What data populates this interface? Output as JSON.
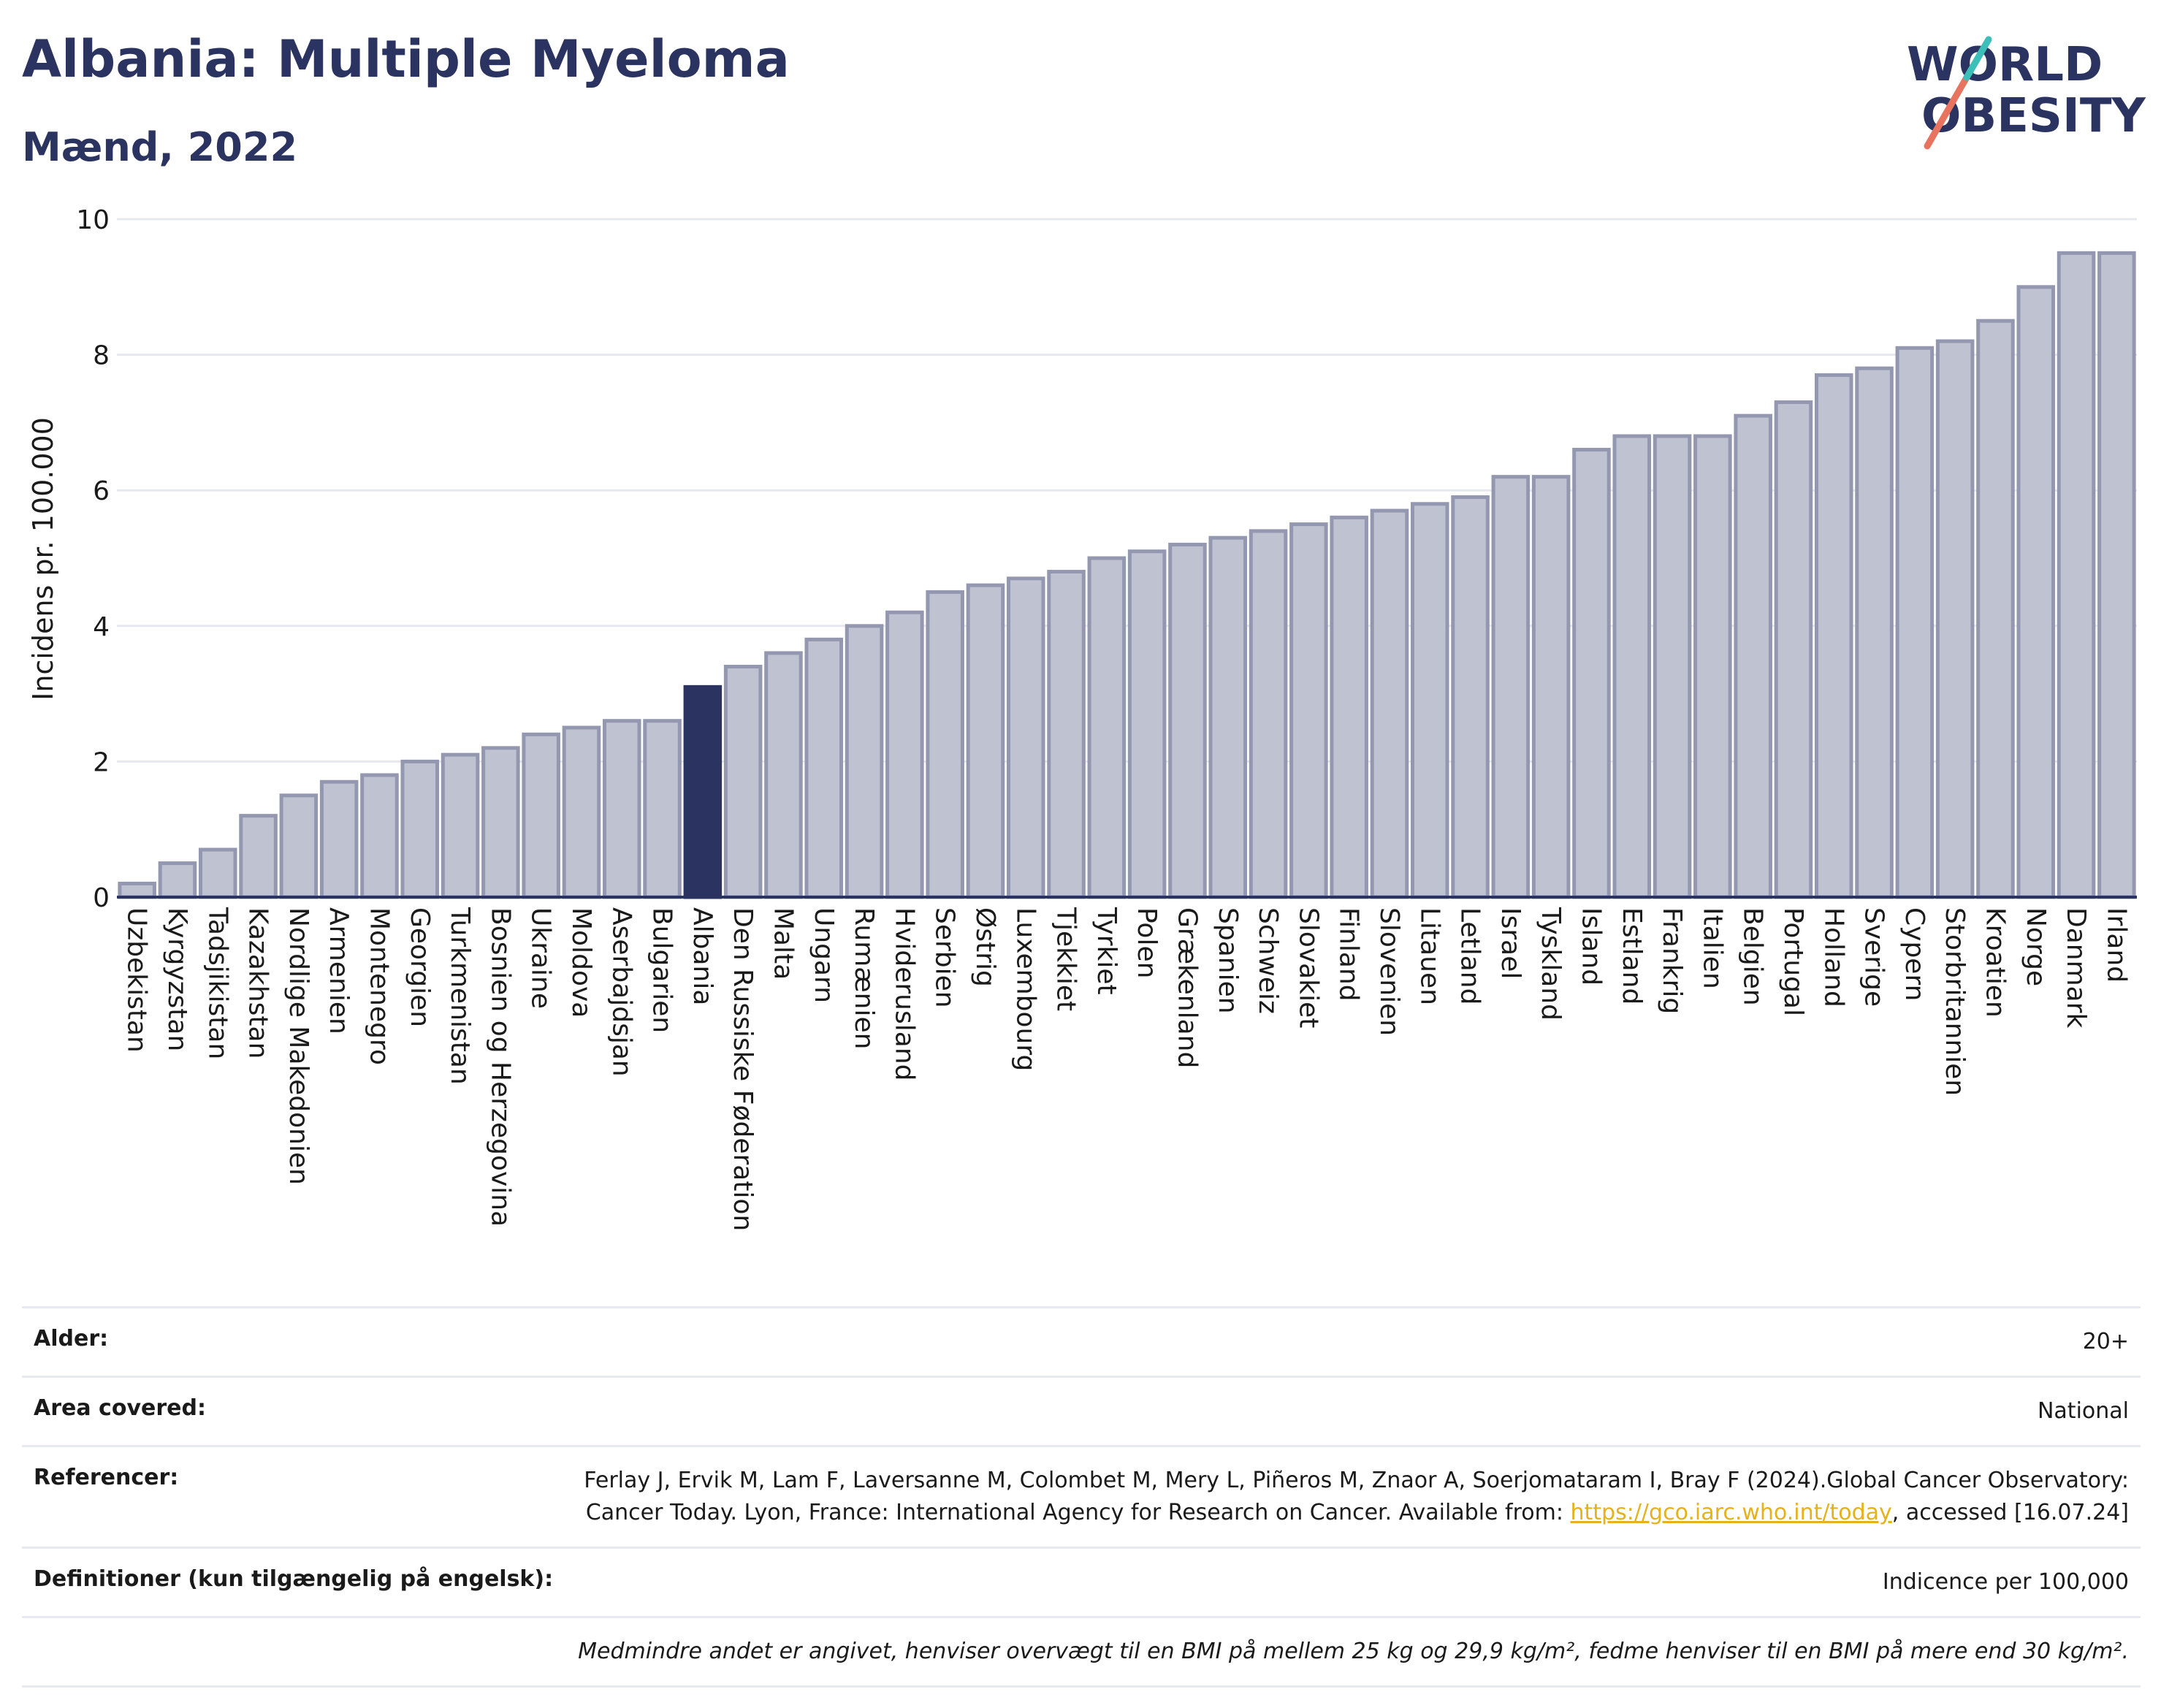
{
  "header": {
    "title": "Albania: Multiple Myeloma",
    "subtitle": "Mænd, 2022",
    "logo_line1": "WORLD",
    "logo_line2": "OBESITY"
  },
  "chart_data": {
    "type": "bar",
    "ylabel": "Incidens pr. 100.000",
    "ylim": [
      0,
      10
    ],
    "yticks": [
      0,
      2,
      4,
      6,
      8,
      10
    ],
    "grid": true,
    "highlight": "Albania",
    "colors": {
      "bar": "#bfc2d1",
      "bar_edge": "#9497b0",
      "highlight": "#2b3461",
      "grid": "#e6e8ee"
    },
    "categories": [
      "Uzbekistan",
      "Kyrgyzstan",
      "Tadsjikistan",
      "Kazakhstan",
      "Nordlige Makedonien",
      "Armenien",
      "Montenegro",
      "Georgien",
      "Turkmenistan",
      "Bosnien og Herzegovina",
      "Ukraine",
      "Moldova",
      "Aserbajdsjan",
      "Bulgarien",
      "Albania",
      "Den Russiske Føderation",
      "Malta",
      "Ungarn",
      "Rumænien",
      "Hviderusland",
      "Serbien",
      "Østrig",
      "Luxembourg",
      "Tjekkiet",
      "Tyrkiet",
      "Polen",
      "Grækenland",
      "Spanien",
      "Schweiz",
      "Slovakiet",
      "Finland",
      "Slovenien",
      "Litauen",
      "Letland",
      "Israel",
      "Tyskland",
      "Island",
      "Estland",
      "Frankrig",
      "Italien",
      "Belgien",
      "Portugal",
      "Holland",
      "Sverige",
      "Cypern",
      "Storbritannien",
      "Kroatien",
      "Norge",
      "Danmark",
      "Irland"
    ],
    "values": [
      0.2,
      0.5,
      0.7,
      1.2,
      1.5,
      1.7,
      1.8,
      2.0,
      2.1,
      2.2,
      2.4,
      2.5,
      2.6,
      2.6,
      3.1,
      3.4,
      3.6,
      3.8,
      4.0,
      4.2,
      4.5,
      4.6,
      4.7,
      4.8,
      5.0,
      5.1,
      5.2,
      5.3,
      5.4,
      5.5,
      5.6,
      5.7,
      5.8,
      5.9,
      6.2,
      6.2,
      6.6,
      6.8,
      6.8,
      6.8,
      7.1,
      7.3,
      7.7,
      7.8,
      8.1,
      8.2,
      8.5,
      9.0,
      9.5,
      9.5
    ]
  },
  "info": {
    "age_label": "Alder:",
    "age_value": "20+",
    "area_label": "Area covered:",
    "area_value": "National",
    "ref_label": "Referencer:",
    "ref_text_1": "Ferlay J, Ervik M, Lam F, Laversanne M, Colombet M, Mery L, Piñeros M, Znaor A, Soerjomataram I, Bray F (2024).Global Cancer Observatory: Cancer Today. Lyon, France: International Agency for Research on Cancer. Available from: ",
    "ref_link": "https://gco.iarc.who.int/today",
    "ref_text_2": ", accessed [16.07.24]",
    "def_label": "Definitioner (kun tilgængelig på engelsk):",
    "def_value": "Indicence per 100,000",
    "note": "Medmindre andet er angivet, henviser overvægt til en BMI på mellem 25 kg og 29,9 kg/m², fedme henviser til en BMI på mere end 30 kg/m²."
  }
}
